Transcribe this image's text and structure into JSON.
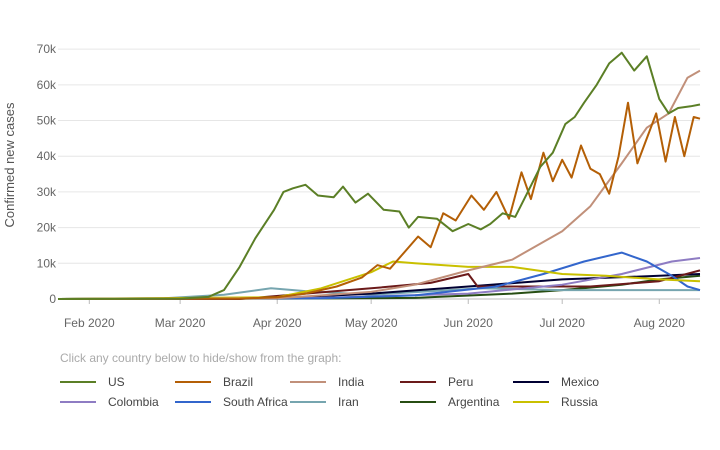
{
  "legend_hint": "Click any country below to hide/show from the graph:",
  "chart_data": {
    "type": "line",
    "title": "",
    "xlabel": "",
    "ylabel": "Confirmed new cases",
    "x_ticks": [
      "Feb 2020",
      "Mar 2020",
      "Apr 2020",
      "May 2020",
      "Jun 2020",
      "Jul 2020",
      "Aug 2020"
    ],
    "y_ticks": [
      "0",
      "10k",
      "20k",
      "30k",
      "40k",
      "50k",
      "60k",
      "70k"
    ],
    "ylim": [
      0,
      72000
    ],
    "xlim": [
      "2020-01-22",
      "2020-08-14"
    ],
    "grid": true,
    "legend_position": "bottom",
    "series": [
      {
        "name": "US",
        "color": "#5b7f26",
        "points": [
          [
            "2020-01-22",
            0
          ],
          [
            "2020-03-01",
            100
          ],
          [
            "2020-03-10",
            600
          ],
          [
            "2020-03-15",
            2500
          ],
          [
            "2020-03-20",
            9000
          ],
          [
            "2020-03-25",
            17000
          ],
          [
            "2020-03-31",
            25000
          ],
          [
            "2020-04-03",
            30000
          ],
          [
            "2020-04-06",
            31000
          ],
          [
            "2020-04-10",
            32000
          ],
          [
            "2020-04-14",
            29000
          ],
          [
            "2020-04-19",
            28500
          ],
          [
            "2020-04-22",
            31500
          ],
          [
            "2020-04-26",
            27000
          ],
          [
            "2020-04-30",
            29500
          ],
          [
            "2020-05-05",
            25000
          ],
          [
            "2020-05-10",
            24500
          ],
          [
            "2020-05-13",
            20000
          ],
          [
            "2020-05-16",
            23000
          ],
          [
            "2020-05-22",
            22500
          ],
          [
            "2020-05-27",
            19000
          ],
          [
            "2020-06-01",
            21000
          ],
          [
            "2020-06-05",
            19500
          ],
          [
            "2020-06-08",
            21000
          ],
          [
            "2020-06-12",
            24000
          ],
          [
            "2020-06-16",
            23000
          ],
          [
            "2020-06-20",
            30000
          ],
          [
            "2020-06-24",
            37000
          ],
          [
            "2020-06-28",
            41000
          ],
          [
            "2020-07-02",
            49000
          ],
          [
            "2020-07-05",
            51000
          ],
          [
            "2020-07-08",
            55000
          ],
          [
            "2020-07-12",
            60000
          ],
          [
            "2020-07-16",
            66000
          ],
          [
            "2020-07-20",
            69000
          ],
          [
            "2020-07-24",
            64000
          ],
          [
            "2020-07-28",
            68000
          ],
          [
            "2020-08-01",
            56000
          ],
          [
            "2020-08-04",
            52000
          ],
          [
            "2020-08-07",
            53500
          ],
          [
            "2020-08-11",
            54000
          ],
          [
            "2020-08-14",
            54500
          ]
        ]
      },
      {
        "name": "Brazil",
        "color": "#b45f06",
        "points": [
          [
            "2020-01-22",
            0
          ],
          [
            "2020-03-20",
            100
          ],
          [
            "2020-04-01",
            500
          ],
          [
            "2020-04-10",
            1500
          ],
          [
            "2020-04-20",
            3500
          ],
          [
            "2020-04-28",
            6000
          ],
          [
            "2020-05-03",
            9500
          ],
          [
            "2020-05-07",
            8500
          ],
          [
            "2020-05-11",
            12500
          ],
          [
            "2020-05-16",
            17500
          ],
          [
            "2020-05-20",
            14500
          ],
          [
            "2020-05-24",
            24000
          ],
          [
            "2020-05-28",
            22000
          ],
          [
            "2020-06-02",
            29000
          ],
          [
            "2020-06-06",
            25000
          ],
          [
            "2020-06-10",
            30000
          ],
          [
            "2020-06-14",
            22500
          ],
          [
            "2020-06-18",
            35500
          ],
          [
            "2020-06-21",
            28000
          ],
          [
            "2020-06-25",
            41000
          ],
          [
            "2020-06-28",
            33000
          ],
          [
            "2020-07-01",
            39000
          ],
          [
            "2020-07-04",
            34000
          ],
          [
            "2020-07-07",
            43000
          ],
          [
            "2020-07-10",
            36500
          ],
          [
            "2020-07-13",
            35000
          ],
          [
            "2020-07-16",
            29500
          ],
          [
            "2020-07-19",
            40000
          ],
          [
            "2020-07-22",
            55000
          ],
          [
            "2020-07-25",
            38000
          ],
          [
            "2020-07-28",
            45000
          ],
          [
            "2020-07-31",
            52000
          ],
          [
            "2020-08-03",
            38500
          ],
          [
            "2020-08-06",
            51000
          ],
          [
            "2020-08-09",
            40000
          ],
          [
            "2020-08-12",
            51000
          ],
          [
            "2020-08-14",
            50500
          ]
        ]
      },
      {
        "name": "India",
        "color": "#c1907a",
        "points": [
          [
            "2020-01-22",
            0
          ],
          [
            "2020-04-01",
            200
          ],
          [
            "2020-04-15",
            1000
          ],
          [
            "2020-05-01",
            2000
          ],
          [
            "2020-05-15",
            4000
          ],
          [
            "2020-06-01",
            8000
          ],
          [
            "2020-06-15",
            11000
          ],
          [
            "2020-07-01",
            19000
          ],
          [
            "2020-07-10",
            26000
          ],
          [
            "2020-07-20",
            38000
          ],
          [
            "2020-07-28",
            48000
          ],
          [
            "2020-08-04",
            52000
          ],
          [
            "2020-08-10",
            62000
          ],
          [
            "2020-08-14",
            64000
          ]
        ]
      },
      {
        "name": "Peru",
        "color": "#6b1a1a",
        "points": [
          [
            "2020-01-22",
            0
          ],
          [
            "2020-03-20",
            0
          ],
          [
            "2020-04-10",
            1500
          ],
          [
            "2020-05-01",
            3000
          ],
          [
            "2020-05-20",
            4500
          ],
          [
            "2020-06-01",
            7000
          ],
          [
            "2020-06-04",
            3500
          ],
          [
            "2020-06-20",
            3500
          ],
          [
            "2020-07-10",
            3500
          ],
          [
            "2020-08-01",
            5000
          ],
          [
            "2020-08-14",
            8000
          ]
        ]
      },
      {
        "name": "Mexico",
        "color": "#000033",
        "points": [
          [
            "2020-01-22",
            0
          ],
          [
            "2020-04-01",
            200
          ],
          [
            "2020-05-01",
            1500
          ],
          [
            "2020-06-01",
            3500
          ],
          [
            "2020-07-01",
            5500
          ],
          [
            "2020-08-01",
            6500
          ],
          [
            "2020-08-14",
            7000
          ]
        ]
      },
      {
        "name": "Colombia",
        "color": "#8e7cc3",
        "points": [
          [
            "2020-01-22",
            0
          ],
          [
            "2020-04-15",
            300
          ],
          [
            "2020-06-01",
            1500
          ],
          [
            "2020-07-01",
            4000
          ],
          [
            "2020-07-20",
            7000
          ],
          [
            "2020-08-05",
            10500
          ],
          [
            "2020-08-14",
            11500
          ]
        ]
      },
      {
        "name": "South Africa",
        "color": "#3366cc",
        "points": [
          [
            "2020-01-22",
            0
          ],
          [
            "2020-04-15",
            200
          ],
          [
            "2020-05-15",
            1000
          ],
          [
            "2020-06-10",
            3500
          ],
          [
            "2020-06-25",
            7000
          ],
          [
            "2020-07-08",
            10500
          ],
          [
            "2020-07-20",
            13000
          ],
          [
            "2020-07-28",
            10500
          ],
          [
            "2020-08-05",
            6500
          ],
          [
            "2020-08-10",
            3500
          ],
          [
            "2020-08-14",
            2500
          ]
        ]
      },
      {
        "name": "Iran",
        "color": "#76a5af",
        "points": [
          [
            "2020-01-22",
            0
          ],
          [
            "2020-02-25",
            200
          ],
          [
            "2020-03-15",
            1200
          ],
          [
            "2020-03-30",
            3000
          ],
          [
            "2020-04-10",
            2200
          ],
          [
            "2020-05-01",
            1200
          ],
          [
            "2020-06-05",
            3000
          ],
          [
            "2020-07-01",
            2500
          ],
          [
            "2020-08-14",
            2500
          ]
        ]
      },
      {
        "name": "Argentina",
        "color": "#274e13",
        "points": [
          [
            "2020-01-22",
            0
          ],
          [
            "2020-04-01",
            100
          ],
          [
            "2020-05-15",
            300
          ],
          [
            "2020-06-15",
            1500
          ],
          [
            "2020-07-01",
            2500
          ],
          [
            "2020-07-20",
            4000
          ],
          [
            "2020-08-01",
            5500
          ],
          [
            "2020-08-14",
            6500
          ]
        ]
      },
      {
        "name": "Russia",
        "color": "#c9c000",
        "points": [
          [
            "2020-01-22",
            0
          ],
          [
            "2020-04-01",
            500
          ],
          [
            "2020-04-15",
            3000
          ],
          [
            "2020-05-01",
            7500
          ],
          [
            "2020-05-08",
            10500
          ],
          [
            "2020-05-15",
            10000
          ],
          [
            "2020-06-01",
            9000
          ],
          [
            "2020-06-15",
            9000
          ],
          [
            "2020-07-01",
            7000
          ],
          [
            "2020-07-15",
            6500
          ],
          [
            "2020-08-01",
            5500
          ],
          [
            "2020-08-14",
            5000
          ]
        ]
      }
    ]
  }
}
